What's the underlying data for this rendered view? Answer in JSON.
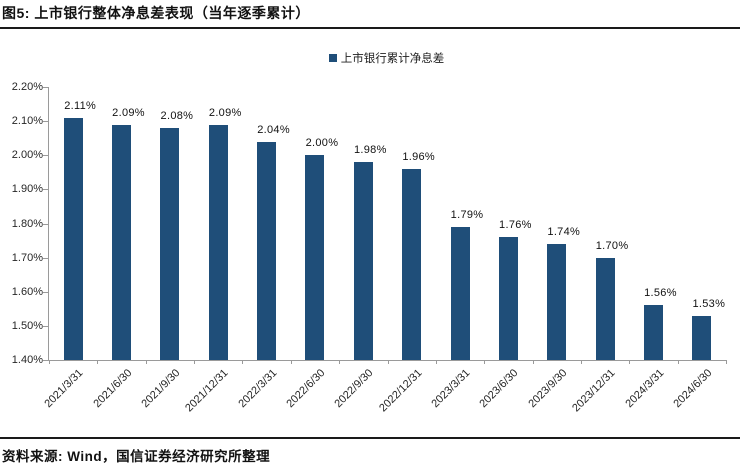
{
  "header": {
    "title": "图5: 上市银行整体净息差表现（当年逐季累计）"
  },
  "footer": {
    "source": "资料来源: Wind，国信证券经济研究所整理"
  },
  "chart_data": {
    "type": "bar",
    "legend": "上市银行累计净息差",
    "legend_position": "top-center",
    "categories": [
      "2021/3/31",
      "2021/6/30",
      "2021/9/30",
      "2021/12/31",
      "2022/3/31",
      "2022/6/30",
      "2022/9/30",
      "2022/12/31",
      "2023/3/31",
      "2023/6/30",
      "2023/9/30",
      "2023/12/31",
      "2024/3/31",
      "2024/6/30"
    ],
    "values": [
      2.11,
      2.09,
      2.08,
      2.09,
      2.04,
      2.0,
      1.98,
      1.96,
      1.79,
      1.76,
      1.74,
      1.7,
      1.56,
      1.53
    ],
    "data_labels": [
      "2.11%",
      "2.09%",
      "2.08%",
      "2.09%",
      "2.04%",
      "2.00%",
      "1.98%",
      "1.96%",
      "1.79%",
      "1.76%",
      "1.74%",
      "1.70%",
      "1.56%",
      "1.53%"
    ],
    "y_ticks": [
      "2.20%",
      "2.10%",
      "2.00%",
      "1.90%",
      "1.80%",
      "1.70%",
      "1.60%",
      "1.50%",
      "1.40%"
    ],
    "y_tick_values": [
      2.2,
      2.1,
      2.0,
      1.9,
      1.8,
      1.7,
      1.6,
      1.5,
      1.4
    ],
    "ylim": [
      1.4,
      2.2
    ],
    "xlabel": "",
    "ylabel": "",
    "grid": false,
    "bar_color": "#1F4E79",
    "axis_color": "#9a9a9a",
    "label_color": "#111111"
  }
}
